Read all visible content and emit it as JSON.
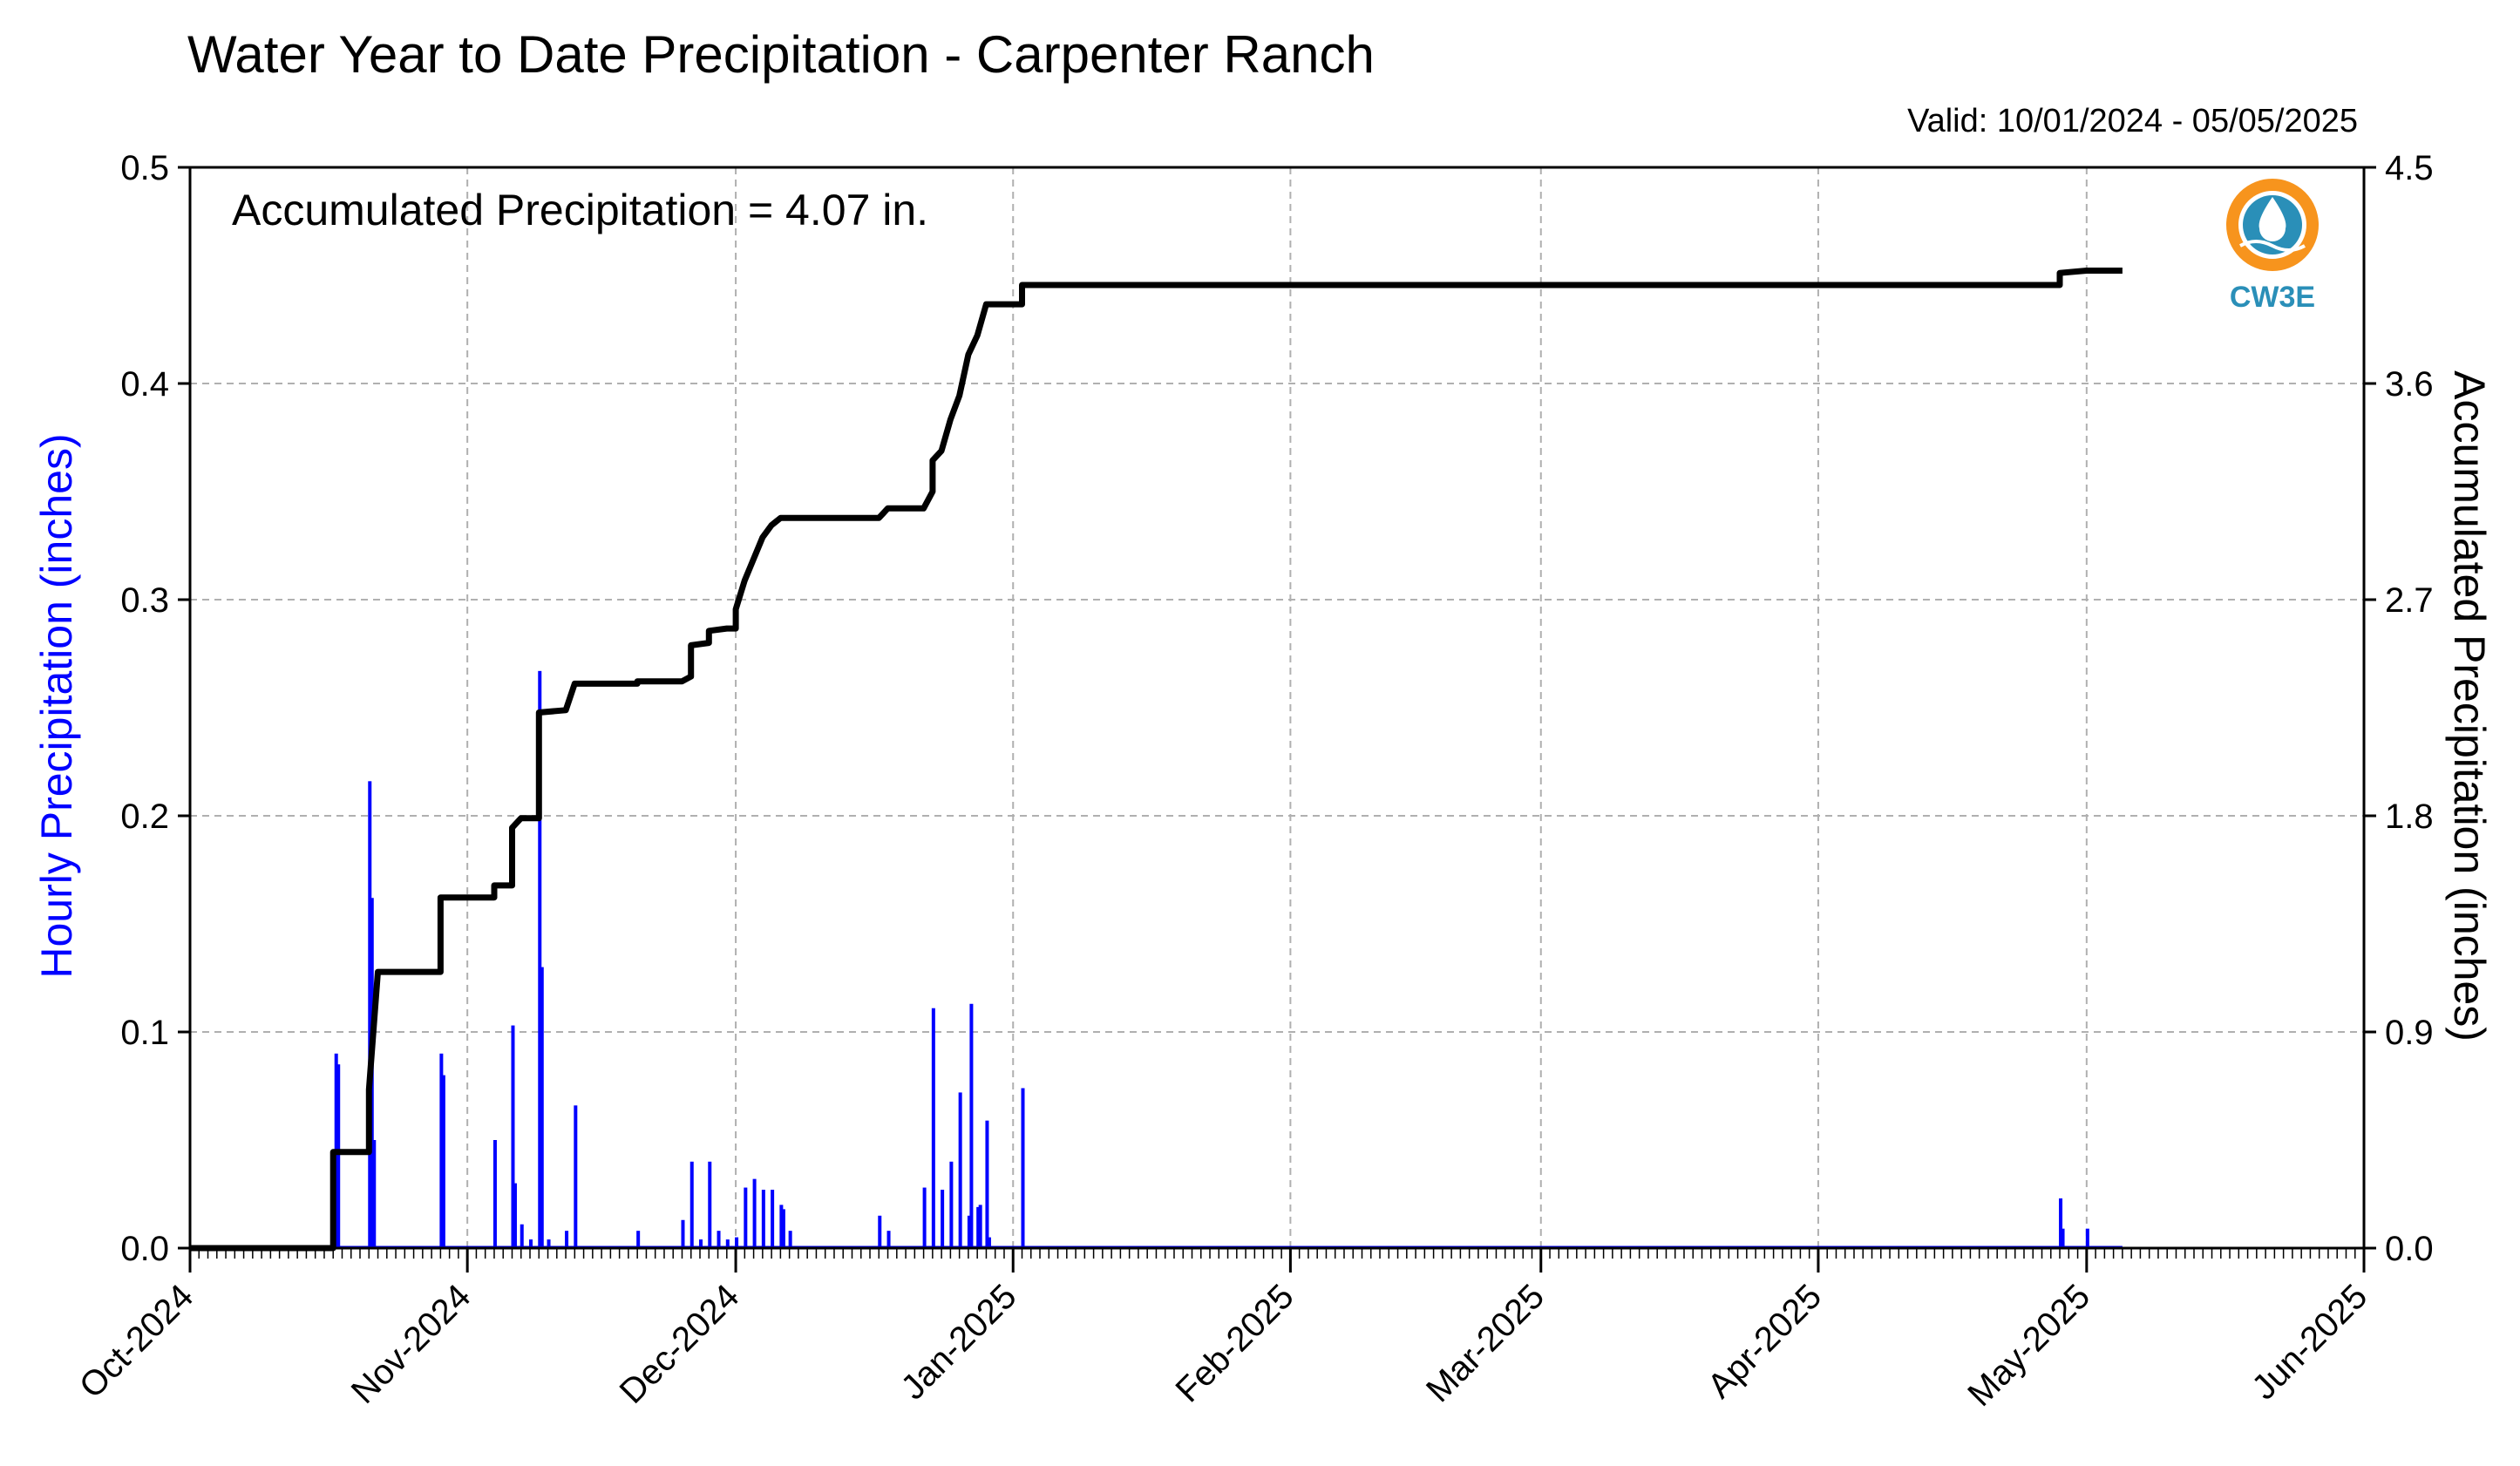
{
  "title": "Water Year to Date Precipitation - Carpenter Ranch",
  "valid_text": "Valid: 10/01/2024 - 05/05/2025",
  "annotation": "Accumulated Precipitation = 4.07 in.",
  "logo_text": "CW3E",
  "colors": {
    "hourly": "#0000ff",
    "accumulated": "#000000",
    "grid": "#b0b0b0",
    "logo_orange": "#f7941d",
    "logo_teal": "#2a8fb8"
  },
  "chart_data": {
    "type": "bar+line",
    "ylabel_left": "Hourly Precipitation (inches)",
    "ylabel_right": "Accumulated Precipitation (inches)",
    "ylim_left": [
      0,
      0.5
    ],
    "ylim_right": [
      0,
      4.5
    ],
    "yticks_left": [
      "0.0",
      "0.1",
      "0.2",
      "0.3",
      "0.4",
      "0.5"
    ],
    "yticks_right": [
      "0.0",
      "0.9",
      "1.8",
      "2.7",
      "3.6",
      "4.5"
    ],
    "xlim": [
      "2024-10-01",
      "2025-06-01"
    ],
    "xticks": [
      {
        "date": "2024-10-01",
        "label": "Oct-2024"
      },
      {
        "date": "2024-11-01",
        "label": "Nov-2024"
      },
      {
        "date": "2024-12-01",
        "label": "Dec-2024"
      },
      {
        "date": "2025-01-01",
        "label": "Jan-2025"
      },
      {
        "date": "2025-02-01",
        "label": "Feb-2025"
      },
      {
        "date": "2025-03-01",
        "label": "Mar-2025"
      },
      {
        "date": "2025-04-01",
        "label": "Apr-2025"
      },
      {
        "date": "2025-05-01",
        "label": "May-2025"
      },
      {
        "date": "2025-06-01",
        "label": "Jun-2025"
      }
    ],
    "grid": true,
    "series": [
      {
        "kind": "bar",
        "axis": "left",
        "points": [
          [
            "2024-10-17",
            0.02
          ],
          [
            "2024-10-17",
            0.09
          ],
          [
            "2024-10-17",
            0.085
          ],
          [
            "2024-10-21",
            0.216
          ],
          [
            "2024-10-21",
            0.162
          ],
          [
            "2024-10-21",
            0.05
          ],
          [
            "2024-10-29",
            0.09
          ],
          [
            "2024-10-29",
            0.08
          ],
          [
            "2024-11-04",
            0.05
          ],
          [
            "2024-11-06",
            0.103
          ],
          [
            "2024-11-06",
            0.03
          ],
          [
            "2024-11-07",
            0.011
          ],
          [
            "2024-11-08",
            0.004
          ],
          [
            "2024-11-09",
            0.267
          ],
          [
            "2024-11-09",
            0.13
          ],
          [
            "2024-11-10",
            0.004
          ],
          [
            "2024-11-12",
            0.008
          ],
          [
            "2024-11-13",
            0.066
          ],
          [
            "2024-11-20",
            0.008
          ],
          [
            "2024-11-25",
            0.013
          ],
          [
            "2024-11-26",
            0.04
          ],
          [
            "2024-11-27",
            0.004
          ],
          [
            "2024-11-28",
            0.04
          ],
          [
            "2024-11-29",
            0.008
          ],
          [
            "2024-11-30",
            0.004
          ],
          [
            "2024-12-01",
            0.005
          ],
          [
            "2024-12-02",
            0.028
          ],
          [
            "2024-12-03",
            0.032
          ],
          [
            "2024-12-04",
            0.027
          ],
          [
            "2024-12-05",
            0.027
          ],
          [
            "2024-12-06",
            0.02
          ],
          [
            "2024-12-06",
            0.018
          ],
          [
            "2024-12-07",
            0.008
          ],
          [
            "2024-12-17",
            0.015
          ],
          [
            "2024-12-18",
            0.008
          ],
          [
            "2024-12-22",
            0.028
          ],
          [
            "2024-12-23",
            0.111
          ],
          [
            "2024-12-24",
            0.027
          ],
          [
            "2024-12-25",
            0.04
          ],
          [
            "2024-12-26",
            0.072
          ],
          [
            "2024-12-27",
            0.015
          ],
          [
            "2024-12-27",
            0.113
          ],
          [
            "2024-12-28",
            0.019
          ],
          [
            "2024-12-28",
            0.02
          ],
          [
            "2024-12-29",
            0.059
          ],
          [
            "2024-12-29",
            0.005
          ],
          [
            "2025-01-02",
            0.074
          ],
          [
            "2025-04-28",
            0.023
          ],
          [
            "2025-04-28",
            0.009
          ],
          [
            "2025-05-01",
            0.009
          ]
        ]
      },
      {
        "kind": "step-line",
        "axis": "right",
        "points": [
          [
            "2024-10-01",
            0.0
          ],
          [
            "2024-10-17",
            0.0
          ],
          [
            "2024-10-17",
            0.4
          ],
          [
            "2024-10-21",
            0.4
          ],
          [
            "2024-10-21",
            0.66
          ],
          [
            "2024-10-22",
            1.15
          ],
          [
            "2024-10-29",
            1.15
          ],
          [
            "2024-10-29",
            1.46
          ],
          [
            "2024-11-04",
            1.46
          ],
          [
            "2024-11-04",
            1.51
          ],
          [
            "2024-11-06",
            1.51
          ],
          [
            "2024-11-06",
            1.75
          ],
          [
            "2024-11-07",
            1.79
          ],
          [
            "2024-11-09",
            1.79
          ],
          [
            "2024-11-09",
            2.23
          ],
          [
            "2024-11-12",
            2.24
          ],
          [
            "2024-11-13",
            2.35
          ],
          [
            "2024-11-20",
            2.35
          ],
          [
            "2024-11-20",
            2.36
          ],
          [
            "2024-11-25",
            2.36
          ],
          [
            "2024-11-26",
            2.38
          ],
          [
            "2024-11-26",
            2.51
          ],
          [
            "2024-11-28",
            2.52
          ],
          [
            "2024-11-28",
            2.57
          ],
          [
            "2024-11-30",
            2.58
          ],
          [
            "2024-12-01",
            2.58
          ],
          [
            "2024-12-01",
            2.66
          ],
          [
            "2024-12-02",
            2.78
          ],
          [
            "2024-12-03",
            2.87
          ],
          [
            "2024-12-04",
            2.96
          ],
          [
            "2024-12-05",
            3.01
          ],
          [
            "2024-12-06",
            3.04
          ],
          [
            "2024-12-17",
            3.04
          ],
          [
            "2024-12-18",
            3.08
          ],
          [
            "2024-12-22",
            3.08
          ],
          [
            "2024-12-23",
            3.15
          ],
          [
            "2024-12-23",
            3.28
          ],
          [
            "2024-12-24",
            3.32
          ],
          [
            "2024-12-25",
            3.45
          ],
          [
            "2024-12-26",
            3.55
          ],
          [
            "2024-12-27",
            3.72
          ],
          [
            "2024-12-28",
            3.8
          ],
          [
            "2024-12-29",
            3.93
          ],
          [
            "2025-01-02",
            3.93
          ],
          [
            "2025-01-02",
            4.01
          ],
          [
            "2025-04-28",
            4.01
          ],
          [
            "2025-04-28",
            4.06
          ],
          [
            "2025-05-01",
            4.07
          ],
          [
            "2025-05-05",
            4.07
          ]
        ]
      }
    ]
  }
}
